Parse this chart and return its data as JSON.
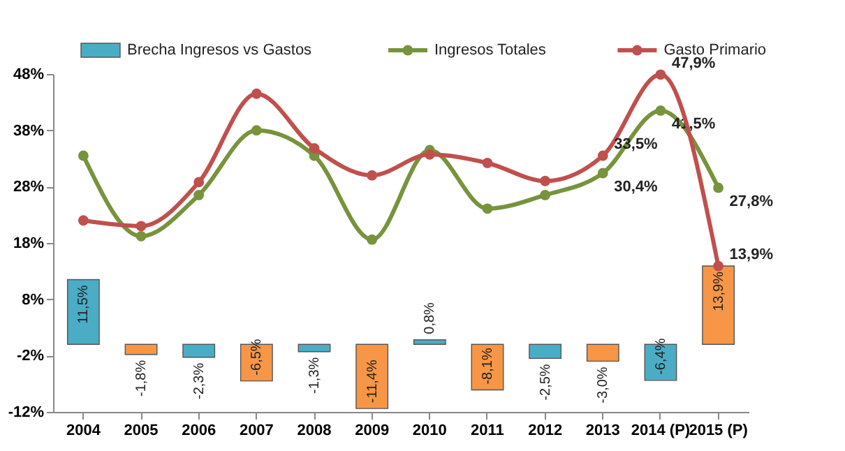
{
  "chart_data": {
    "type": "line",
    "categories": [
      "2004",
      "2005",
      "2006",
      "2007",
      "2008",
      "2009",
      "2010",
      "2011",
      "2012",
      "2013",
      "2014 (P)",
      "2015 (P)"
    ],
    "series": [
      {
        "name": "Brecha Ingresos vs Gastos",
        "type": "bar",
        "color": "#4bacc6",
        "colors": [
          "#4bacc6",
          "#f79646",
          "#4bacc6",
          "#f79646",
          "#4bacc6",
          "#f79646",
          "#4bacc6",
          "#f79646",
          "#4bacc6",
          "#f79646",
          "#4bacc6",
          "#f79646"
        ],
        "values": [
          11.5,
          -1.8,
          -2.3,
          -6.5,
          -1.3,
          -11.4,
          0.8,
          -8.1,
          -2.5,
          -3.0,
          -6.4,
          13.9
        ],
        "value_labels": [
          "11,5%",
          "-1,8%",
          "-2,3%",
          "-6,5%",
          "-1,3%",
          "-11,4%",
          "0,8%",
          "-8,1%",
          "-2,5%",
          "-3,0%",
          "-6,4%",
          "13,9%"
        ]
      },
      {
        "name": "Ingresos Totales",
        "color": "#77933c",
        "values": [
          33.5,
          19.2,
          26.5,
          38.0,
          33.5,
          18.6,
          34.5,
          24.1,
          26.5,
          30.4,
          41.5,
          27.8
        ],
        "value_labels": [
          null,
          null,
          null,
          null,
          null,
          null,
          null,
          null,
          null,
          "30,4%",
          "41,5%",
          "27,8%"
        ]
      },
      {
        "name": "Gasto  Primario",
        "color": "#c0504d",
        "values": [
          22.0,
          21.0,
          28.8,
          44.5,
          34.8,
          30.0,
          33.7,
          32.2,
          29.0,
          33.5,
          47.9,
          13.9
        ],
        "value_labels": [
          null,
          null,
          null,
          null,
          null,
          null,
          null,
          null,
          null,
          "33,5%",
          "47,9%",
          "13,9%"
        ]
      }
    ],
    "ylim": [
      -12,
      48
    ],
    "yticks": [
      {
        "value": -12,
        "label": "-12%"
      },
      {
        "value": -2,
        "label": "-2%"
      },
      {
        "value": 8,
        "label": "8%"
      },
      {
        "value": 18,
        "label": "18%"
      },
      {
        "value": 28,
        "label": "28%"
      },
      {
        "value": 38,
        "label": "38%"
      },
      {
        "value": 48,
        "label": "48%"
      }
    ],
    "legend": "top",
    "marker": "circle",
    "grid": false
  }
}
